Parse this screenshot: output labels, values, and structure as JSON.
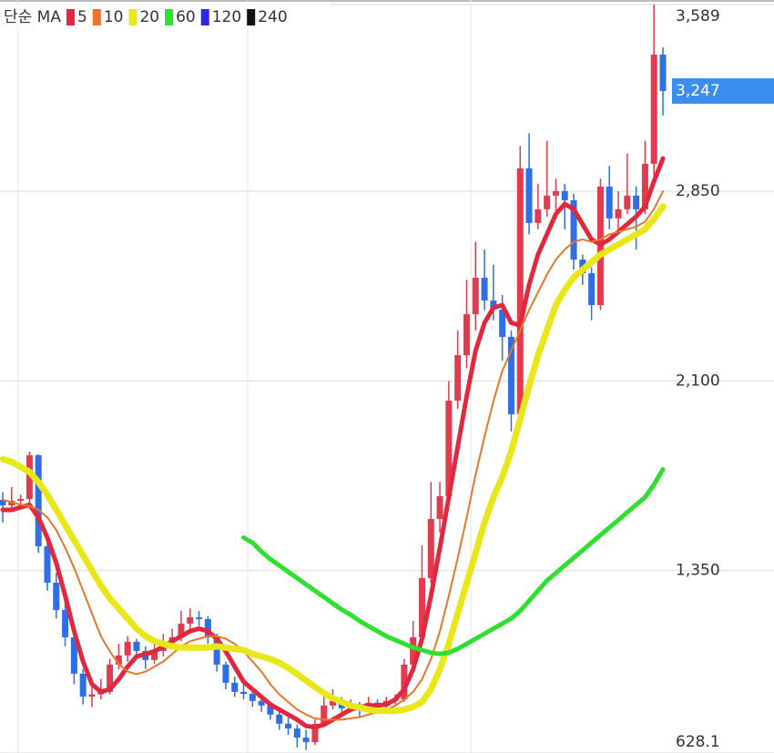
{
  "chart_data": {
    "type": "candlestick",
    "legend_title": "단순 MA",
    "up_color": "#e23a4e",
    "down_color": "#2e6ee6",
    "ylim": [
      628.1,
      3589
    ],
    "yticks": [
      {
        "value": 3589,
        "label": "3,589"
      },
      {
        "value": 2850,
        "label": "2,850"
      },
      {
        "value": 2100,
        "label": "2,100"
      },
      {
        "value": 1350,
        "label": "1,350"
      },
      628.1
    ],
    "grid": true,
    "current_price": {
      "value": 3247,
      "label": "3,247",
      "color": "#3b8ef0"
    },
    "ohlc": [
      [
        1630,
        1660,
        1540,
        1608
      ],
      [
        1608,
        1680,
        1590,
        1626
      ],
      [
        1626,
        1650,
        1600,
        1633
      ],
      [
        1633,
        1820,
        1610,
        1806
      ],
      [
        1806,
        1810,
        1420,
        1446
      ],
      [
        1446,
        1480,
        1270,
        1302
      ],
      [
        1302,
        1340,
        1160,
        1194
      ],
      [
        1194,
        1230,
        1050,
        1086
      ],
      [
        1086,
        1110,
        900,
        942
      ],
      [
        942,
        960,
        820,
        851
      ],
      [
        851,
        900,
        810,
        860
      ],
      [
        860,
        920,
        840,
        870
      ],
      [
        870,
        1000,
        860,
        978
      ],
      [
        978,
        1060,
        960,
        1014
      ],
      [
        1014,
        1090,
        990,
        1068
      ],
      [
        1068,
        1080,
        1000,
        1032
      ],
      [
        1032,
        1050,
        960,
        996
      ],
      [
        996,
        1060,
        980,
        1032
      ],
      [
        1032,
        1100,
        1010,
        1068
      ],
      [
        1068,
        1120,
        1040,
        1086
      ],
      [
        1086,
        1190,
        1070,
        1140
      ],
      [
        1140,
        1200,
        1110,
        1165
      ],
      [
        1165,
        1190,
        1130,
        1158
      ],
      [
        1158,
        1170,
        1060,
        1086
      ],
      [
        1086,
        1100,
        950,
        978
      ],
      [
        978,
        990,
        880,
        906
      ],
      [
        906,
        930,
        850,
        870
      ],
      [
        870,
        900,
        840,
        862
      ],
      [
        862,
        880,
        810,
        834
      ],
      [
        834,
        860,
        790,
        816
      ],
      [
        816,
        830,
        760,
        780
      ],
      [
        780,
        800,
        720,
        744
      ],
      [
        744,
        770,
        700,
        725
      ],
      [
        725,
        740,
        650,
        689
      ],
      [
        689,
        720,
        640,
        671
      ],
      [
        671,
        760,
        660,
        743
      ],
      [
        743,
        850,
        730,
        816
      ],
      [
        816,
        880,
        800,
        834
      ],
      [
        834,
        850,
        780,
        805
      ],
      [
        805,
        840,
        790,
        816
      ],
      [
        816,
        830,
        770,
        798
      ],
      [
        798,
        850,
        790,
        827
      ],
      [
        827,
        840,
        800,
        816
      ],
      [
        816,
        850,
        805,
        834
      ],
      [
        834,
        860,
        820,
        840
      ],
      [
        840,
        1000,
        830,
        978
      ],
      [
        978,
        1150,
        960,
        1086
      ],
      [
        1086,
        1450,
        1070,
        1320
      ],
      [
        1320,
        1700,
        1300,
        1554
      ],
      [
        1554,
        1700,
        1500,
        1644
      ],
      [
        1644,
        2100,
        1620,
        2022
      ],
      [
        2022,
        2300,
        1990,
        2202
      ],
      [
        2202,
        2500,
        2150,
        2364
      ],
      [
        2364,
        2650,
        2300,
        2508
      ],
      [
        2508,
        2620,
        2380,
        2418
      ],
      [
        2418,
        2560,
        2340,
        2382
      ],
      [
        2382,
        2440,
        2180,
        2274
      ],
      [
        2274,
        2300,
        1900,
        1968
      ],
      [
        1968,
        3030,
        1950,
        2941
      ],
      [
        2941,
        3080,
        2680,
        2725
      ],
      [
        2725,
        2880,
        2700,
        2779
      ],
      [
        2779,
        3050,
        2750,
        2833
      ],
      [
        2833,
        2900,
        2760,
        2851
      ],
      [
        2851,
        2880,
        2700,
        2815
      ],
      [
        2815,
        2840,
        2540,
        2580
      ],
      [
        2580,
        2600,
        2480,
        2526
      ],
      [
        2526,
        2550,
        2340,
        2400
      ],
      [
        2400,
        2900,
        2380,
        2869
      ],
      [
        2869,
        2950,
        2700,
        2743
      ],
      [
        2743,
        2850,
        2700,
        2779
      ],
      [
        2779,
        3000,
        2760,
        2833
      ],
      [
        2833,
        2870,
        2620,
        2779
      ],
      [
        2779,
        3050,
        2760,
        2959
      ],
      [
        2959,
        3589,
        2900,
        3391
      ],
      [
        3391,
        3420,
        3150,
        3247
      ]
    ],
    "series": [
      {
        "name": "5",
        "color": "#e3273d",
        "width": 5,
        "values": [
          1590,
          1590,
          1600,
          1610,
          1560,
          1480,
          1380,
          1250,
          1110,
          990,
          900,
          870,
          880,
          920,
          970,
          1010,
          1020,
          1030,
          1050,
          1070,
          1090,
          1110,
          1120,
          1110,
          1080,
          1030,
          970,
          910,
          880,
          850,
          820,
          800,
          780,
          760,
          735,
          730,
          740,
          760,
          780,
          800,
          810,
          815,
          816,
          820,
          840,
          880,
          960,
          1080,
          1250,
          1440,
          1640,
          1840,
          2040,
          2220,
          2330,
          2390,
          2400,
          2330,
          2320,
          2480,
          2600,
          2680,
          2760,
          2800,
          2780,
          2720,
          2660,
          2640,
          2660,
          2690,
          2720,
          2750,
          2790,
          2890,
          2980
        ]
      },
      {
        "name": "10",
        "color": "#e8762b",
        "width": 2,
        "values": [
          1630,
          1620,
          1610,
          1605,
          1590,
          1560,
          1510,
          1440,
          1360,
          1270,
          1180,
          1090,
          1030,
          980,
          950,
          940,
          950,
          970,
          990,
          1020,
          1050,
          1070,
          1080,
          1090,
          1090,
          1080,
          1060,
          1030,
          990,
          950,
          900,
          860,
          830,
          800,
          780,
          765,
          760,
          760,
          760,
          765,
          770,
          780,
          790,
          800,
          815,
          840,
          870,
          920,
          1000,
          1110,
          1250,
          1400,
          1560,
          1730,
          1880,
          2020,
          2140,
          2220,
          2300,
          2380,
          2450,
          2520,
          2580,
          2620,
          2650,
          2660,
          2650,
          2660,
          2680,
          2690,
          2700,
          2710,
          2730,
          2780,
          2850
        ]
      },
      {
        "name": "20",
        "color": "#e9e61a",
        "width": 7,
        "values": [
          1790,
          1780,
          1760,
          1740,
          1700,
          1650,
          1590,
          1530,
          1470,
          1410,
          1350,
          1290,
          1240,
          1200,
          1160,
          1120,
          1090,
          1070,
          1060,
          1050,
          1045,
          1045,
          1045,
          1045,
          1050,
          1045,
          1040,
          1035,
          1020,
          1010,
          1000,
          985,
          965,
          940,
          915,
          890,
          865,
          845,
          830,
          815,
          808,
          800,
          795,
          795,
          795,
          800,
          810,
          830,
          880,
          960,
          1060,
          1180,
          1300,
          1420,
          1540,
          1640,
          1720,
          1820,
          1950,
          2080,
          2200,
          2300,
          2400,
          2460,
          2510,
          2540,
          2570,
          2600,
          2620,
          2640,
          2660,
          2680,
          2700,
          2740,
          2790
        ]
      },
      {
        "name": "60",
        "color": "#30e030",
        "width": 5,
        "values": [
          null,
          null,
          null,
          null,
          null,
          null,
          null,
          null,
          null,
          null,
          null,
          null,
          null,
          null,
          null,
          null,
          null,
          null,
          null,
          null,
          null,
          null,
          null,
          null,
          null,
          null,
          null,
          1480,
          1460,
          1425,
          1395,
          1370,
          1345,
          1320,
          1295,
          1270,
          1245,
          1220,
          1195,
          1175,
          1150,
          1130,
          1110,
          1090,
          1075,
          1060,
          1045,
          1035,
          1025,
          1020,
          1025,
          1040,
          1060,
          1080,
          1100,
          1120,
          1140,
          1160,
          1190,
          1230,
          1270,
          1310,
          1340,
          1370,
          1400,
          1430,
          1460,
          1490,
          1520,
          1550,
          1580,
          1610,
          1640,
          1690,
          1750
        ]
      },
      {
        "name": "120",
        "color": "#2a2ae6"
      },
      {
        "name": "240",
        "color": "#111111"
      }
    ]
  }
}
